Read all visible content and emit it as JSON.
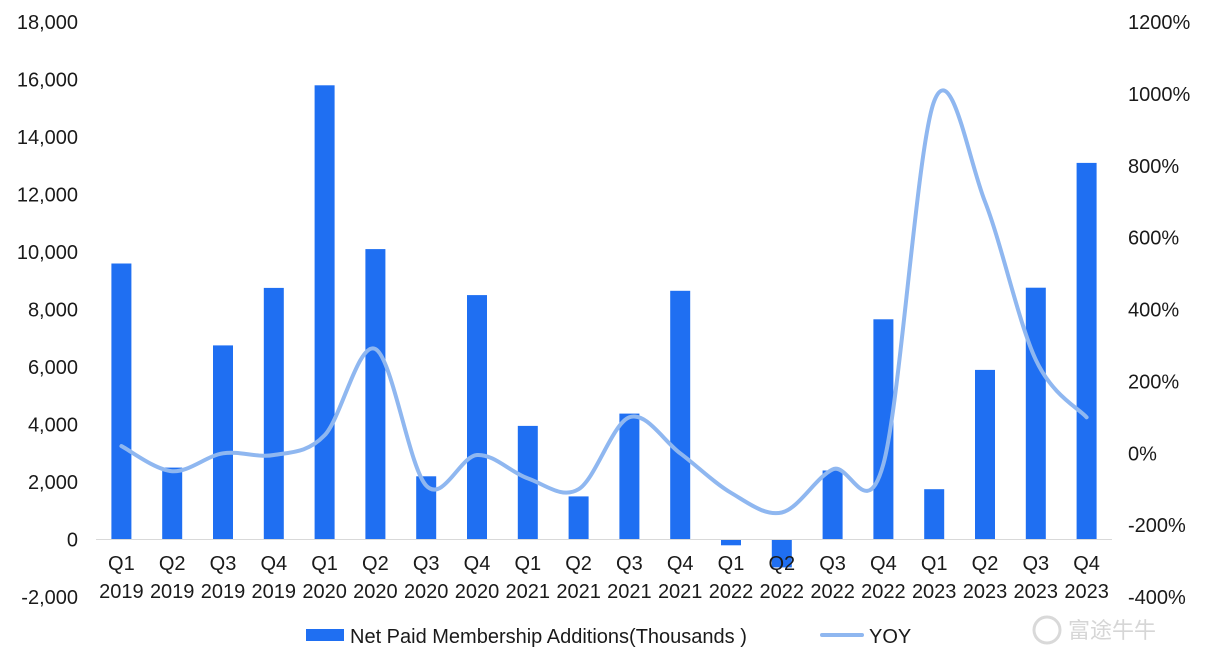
{
  "chart_data": {
    "type": "bar",
    "categories": [
      [
        "Q1",
        "2019"
      ],
      [
        "Q2",
        "2019"
      ],
      [
        "Q3",
        "2019"
      ],
      [
        "Q4",
        "2019"
      ],
      [
        "Q1",
        "2020"
      ],
      [
        "Q2",
        "2020"
      ],
      [
        "Q3",
        "2020"
      ],
      [
        "Q4",
        "2020"
      ],
      [
        "Q1",
        "2021"
      ],
      [
        "Q2",
        "2021"
      ],
      [
        "Q3",
        "2021"
      ],
      [
        "Q4",
        "2021"
      ],
      [
        "Q1",
        "2022"
      ],
      [
        "Q2",
        "2022"
      ],
      [
        "Q3",
        "2022"
      ],
      [
        "Q4",
        "2022"
      ],
      [
        "Q1",
        "2023"
      ],
      [
        "Q2",
        "2023"
      ],
      [
        "Q3",
        "2023"
      ],
      [
        "Q4",
        "2023"
      ]
    ],
    "series": [
      {
        "name": "Net Paid Membership Additions(Thousands )",
        "type": "bar",
        "axis": "left",
        "color": "#1f6ff2",
        "values": [
          9600,
          2500,
          6750,
          8750,
          15800,
          10100,
          2200,
          8500,
          3950,
          1500,
          4380,
          8650,
          -200,
          -970,
          2400,
          7660,
          1750,
          5900,
          8760,
          13100
        ]
      },
      {
        "name": "YOY",
        "type": "line",
        "axis": "right",
        "color": "#8fb7f0",
        "values": [
          20,
          -50,
          0,
          -5,
          50,
          290,
          -90,
          -5,
          -70,
          -100,
          100,
          0,
          -110,
          -165,
          -45,
          -30,
          980,
          700,
          260,
          100
        ]
      }
    ],
    "y_left": {
      "min": -2000,
      "max": 18000,
      "step": 2000,
      "ticks": [
        "-2,000",
        "0",
        "2,000",
        "4,000",
        "6,000",
        "8,000",
        "10,000",
        "12,000",
        "14,000",
        "16,000",
        "18,000"
      ]
    },
    "y_right": {
      "min": -400,
      "max": 1200,
      "step": 200,
      "ticks": [
        "-400%",
        "-200%",
        "0%",
        "200%",
        "400%",
        "600%",
        "800%",
        "1000%",
        "1200%"
      ]
    },
    "grid": false,
    "legend_position": "bottom-center",
    "title": "",
    "xlabel": "",
    "ylabel": ""
  },
  "legend": {
    "bar_label": "Net Paid Membership Additions(Thousands )",
    "line_label": "YOY"
  },
  "watermark": {
    "text": "富途牛牛"
  }
}
